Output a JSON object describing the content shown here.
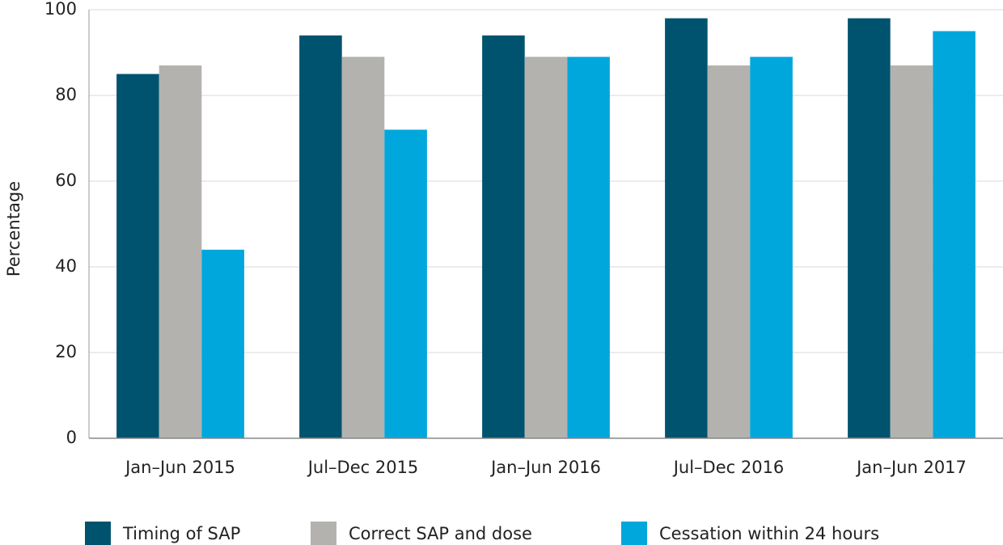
{
  "chart_data": {
    "type": "bar",
    "y_label": "Percentage",
    "categories": [
      "Jan–Jun 2015",
      "Jul–Dec 2015",
      "Jan–Jun 2016",
      "Jul–Dec 2016",
      "Jan–Jun 2017"
    ],
    "series": [
      {
        "name": "Timing of SAP",
        "color": "#00536e",
        "values": [
          85,
          94,
          94,
          98,
          98
        ]
      },
      {
        "name": "Correct SAP and dose",
        "color": "#b3b2ae",
        "values": [
          87,
          89,
          89,
          87,
          87
        ]
      },
      {
        "name": "Cessation within 24 hours",
        "color": "#00a7dc",
        "values": [
          44,
          72,
          89,
          89,
          95
        ]
      }
    ],
    "ylim": [
      0,
      100
    ],
    "yticks": [
      0,
      20,
      40,
      60,
      80,
      100
    ],
    "grid": true
  }
}
